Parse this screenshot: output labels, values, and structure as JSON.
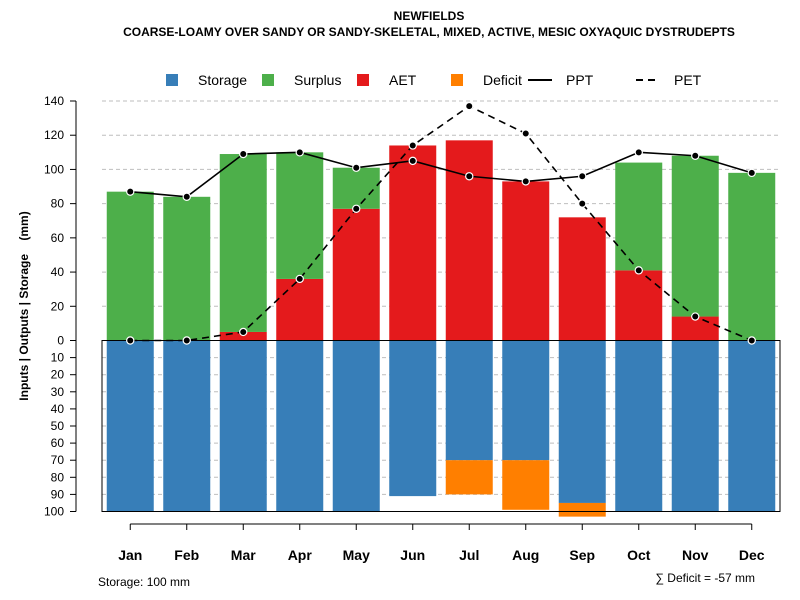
{
  "chart_data": {
    "type": "bar",
    "title": "NEWFIELDS",
    "subtitle": "COARSE-LOAMY OVER SANDY OR SANDY-SKELETAL, MIXED, ACTIVE, MESIC OXYAQUIC DYSTRUDEPTS",
    "ylabel": "Inputs | Outputs | Storage    (mm)",
    "xlabel": "",
    "upper_ylim": [
      0,
      140
    ],
    "upper_ticks": [
      "0",
      "20",
      "40",
      "60",
      "80",
      "100",
      "120",
      "140"
    ],
    "lower_ylim": [
      0,
      100
    ],
    "lower_ticks": [
      "0",
      "10",
      "20",
      "30",
      "40",
      "50",
      "60",
      "70",
      "80",
      "90",
      "100"
    ],
    "categories": [
      "Jan",
      "Feb",
      "Mar",
      "Apr",
      "May",
      "Jun",
      "Jul",
      "Aug",
      "Sep",
      "Oct",
      "Nov",
      "Dec"
    ],
    "series": [
      {
        "name": "AET",
        "kind": "bar",
        "values": [
          0,
          0,
          5,
          36,
          77,
          114,
          117,
          93,
          72,
          41,
          14,
          0
        ]
      },
      {
        "name": "Surplus",
        "kind": "bar",
        "values": [
          87,
          84,
          104,
          74,
          24,
          0,
          0,
          0,
          0,
          63,
          94,
          98
        ]
      },
      {
        "name": "Storage",
        "kind": "bar-down",
        "values": [
          100,
          100,
          100,
          100,
          100,
          91,
          70,
          70,
          95,
          100,
          100,
          100
        ]
      },
      {
        "name": "Deficit",
        "kind": "bar-down",
        "values": [
          0,
          0,
          0,
          0,
          0,
          0,
          20,
          29,
          8,
          0,
          0,
          0
        ]
      },
      {
        "name": "PPT",
        "kind": "line",
        "values": [
          87,
          84,
          109,
          110,
          101,
          105,
          96,
          93,
          96,
          110,
          108,
          98
        ]
      },
      {
        "name": "PET",
        "kind": "dashed-line",
        "values": [
          0,
          0,
          5,
          36,
          77,
          114,
          137,
          121,
          80,
          41,
          14,
          0
        ]
      }
    ],
    "legend": {
      "position": "top",
      "items": [
        {
          "label": "Storage",
          "type": "square",
          "color": "#377EB8"
        },
        {
          "label": "Surplus",
          "type": "square",
          "color": "#4DAF4A"
        },
        {
          "label": "AET",
          "type": "square",
          "color": "#E41A1C"
        },
        {
          "label": "Deficit",
          "type": "square",
          "color": "#FF7F00"
        },
        {
          "label": "PPT",
          "type": "line",
          "color": "#000000"
        },
        {
          "label": "PET",
          "type": "dashed",
          "color": "#000000"
        }
      ]
    },
    "annotations": {
      "storage": "Storage: 100 mm",
      "deficit": "∑ Deficit = -57 mm"
    },
    "colors": {
      "Storage": "#377EB8",
      "Surplus": "#4DAF4A",
      "AET": "#E41A1C",
      "Deficit": "#FF7F00",
      "grid": "#BEBEBE"
    }
  }
}
